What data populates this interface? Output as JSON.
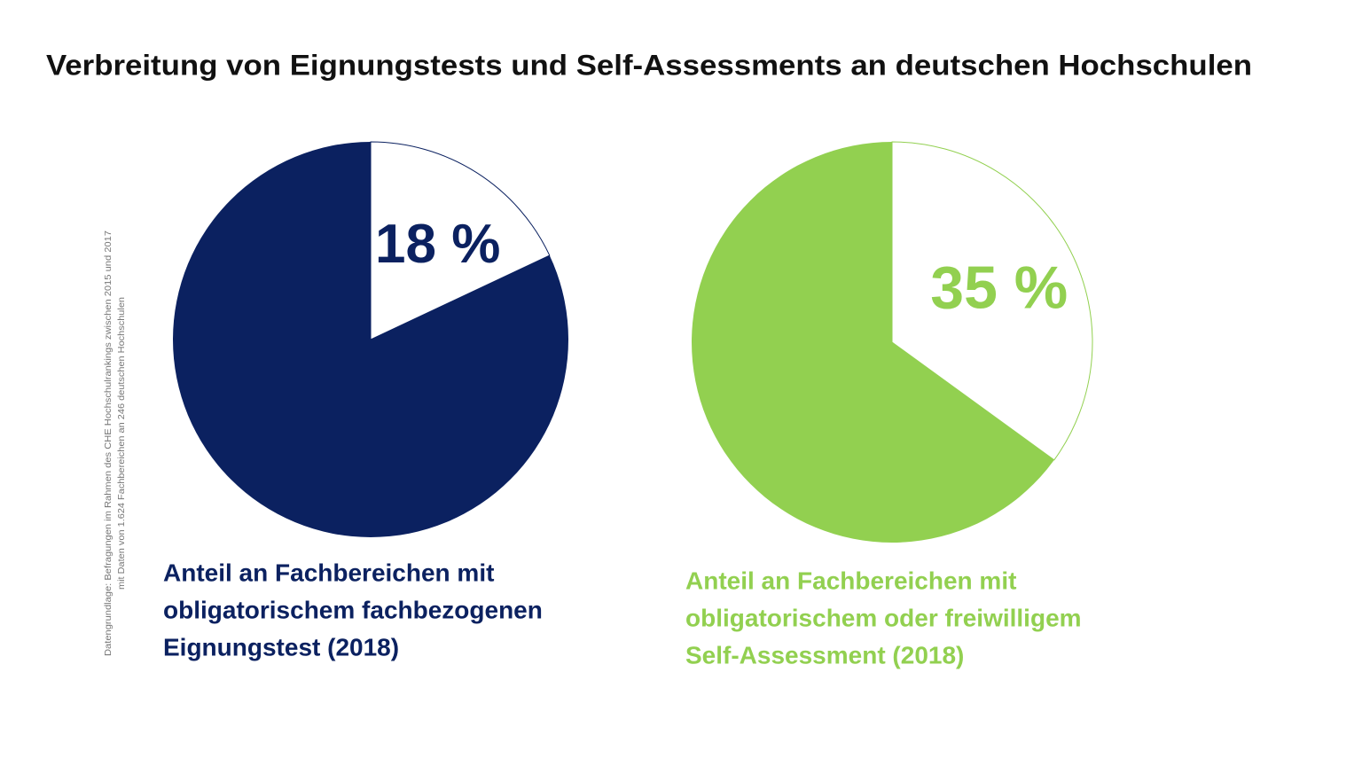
{
  "title": "Verbreitung von Eignungstests und Self-Assessments an deutschen Hochschulen",
  "source": [
    "Datengrundlage: Befragungen im Rahmen des CHE Hochschulrankings zwischen 2015 und 2017",
    "mit Daten von 1.624 Fachbereichen an 246 deutschen Hochschulen"
  ],
  "chart_data": [
    {
      "type": "pie",
      "values": [
        18
      ],
      "value_labels": [
        "18 %"
      ],
      "color": "#0b2160",
      "caption": [
        "Anteil an Fachbereichen mit",
        "obligatorischem fachbezogenen",
        "Eignungstest (2018)"
      ]
    },
    {
      "type": "pie",
      "values": [
        35
      ],
      "value_labels": [
        "35 %"
      ],
      "color": "#92d050",
      "caption": [
        "Anteil an Fachbereichen mit",
        "obligatorischem oder freiwilligem",
        "Self-Assessment (2018)"
      ]
    }
  ]
}
